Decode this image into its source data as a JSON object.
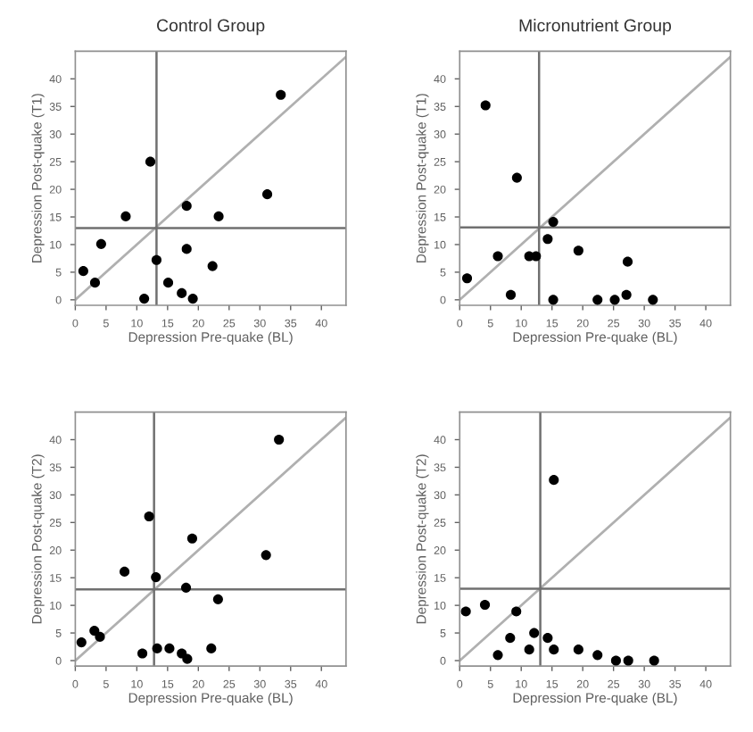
{
  "chart_data": [
    {
      "type": "scatter",
      "title": "Control Group",
      "xlabel": "Depression Pre-quake (BL)",
      "ylabel": "Depression Post-quake (T1)",
      "xlim": [
        0,
        44
      ],
      "ylim": [
        -1,
        45
      ],
      "xticks": [
        0,
        5,
        10,
        15,
        20,
        25,
        30,
        35,
        40
      ],
      "yticks": [
        0,
        5,
        10,
        15,
        20,
        25,
        30,
        35,
        40
      ],
      "grid": false,
      "series": [
        {
          "color": "#000000",
          "marker": "circle",
          "x": [
            1.3,
            3.2,
            4.2,
            8.2,
            12.2,
            11.2,
            13.2,
            15.1,
            17.3,
            18.1,
            18.1,
            19.1,
            22.3,
            23.3,
            31.2,
            33.4
          ],
          "values": [
            5.2,
            3.1,
            10.1,
            15.1,
            25,
            0.2,
            7.2,
            3.1,
            1.2,
            17,
            9.2,
            0.2,
            6.1,
            15.1,
            19.1,
            37.1
          ]
        },
        {
          "type": "line",
          "marker": "none",
          "color": "#b0b0b0",
          "x": [
            0,
            44
          ],
          "values": [
            0,
            44
          ]
        }
      ],
      "ref_lines": [
        {
          "axis": "x",
          "value": 13.2,
          "color": "#707070"
        },
        {
          "axis": "y",
          "value": 13,
          "color": "#707070"
        }
      ]
    },
    {
      "type": "scatter",
      "title": "Micronutrient Group",
      "xlabel": "Depression Pre-quake (BL)",
      "ylabel": "Depression Post-quake (T1)",
      "xlim": [
        0,
        44
      ],
      "ylim": [
        -1,
        45
      ],
      "xticks": [
        0,
        5,
        10,
        15,
        20,
        25,
        30,
        35,
        40
      ],
      "yticks": [
        0,
        5,
        10,
        15,
        20,
        25,
        30,
        35,
        40
      ],
      "grid": false,
      "series": [
        {
          "color": "#000000",
          "marker": "circle",
          "x": [
            1.2,
            4.2,
            6.2,
            8.3,
            9.3,
            11.3,
            12.4,
            14.3,
            15.2,
            15.2,
            19.3,
            22.4,
            25.2,
            27.1,
            27.3,
            31.4
          ],
          "values": [
            3.9,
            35.2,
            7.9,
            0.9,
            22.1,
            7.9,
            7.9,
            11,
            14.1,
            0,
            8.9,
            0,
            0,
            0.9,
            6.9,
            0
          ]
        },
        {
          "type": "line",
          "marker": "none",
          "color": "#b0b0b0",
          "x": [
            0,
            44
          ],
          "values": [
            0,
            44
          ]
        }
      ],
      "ref_lines": [
        {
          "axis": "x",
          "value": 12.9,
          "color": "#707070"
        },
        {
          "axis": "y",
          "value": 13.1,
          "color": "#707070"
        }
      ]
    },
    {
      "type": "scatter",
      "xlabel": "Depression Pre-quake (BL)",
      "ylabel": "Depression Post-quake (T2)",
      "xlim": [
        0,
        44
      ],
      "ylim": [
        -1,
        45
      ],
      "xticks": [
        0,
        5,
        10,
        15,
        20,
        25,
        30,
        35,
        40
      ],
      "yticks": [
        0,
        5,
        10,
        15,
        20,
        25,
        30,
        35,
        40
      ],
      "grid": false,
      "series": [
        {
          "color": "#000000",
          "marker": "circle",
          "x": [
            1,
            3.1,
            4,
            8,
            12,
            10.9,
            13.1,
            13.3,
            15.3,
            17.3,
            18,
            18.2,
            19,
            22.1,
            23.2,
            31,
            33.1
          ],
          "values": [
            3.3,
            5.4,
            4.3,
            16.1,
            26.1,
            1.3,
            15.1,
            2.2,
            2.2,
            1.3,
            13.2,
            0.3,
            22.1,
            2.2,
            11.1,
            19.1,
            40
          ]
        },
        {
          "type": "line",
          "marker": "none",
          "color": "#b0b0b0",
          "x": [
            0,
            44
          ],
          "values": [
            0,
            44
          ]
        }
      ],
      "ref_lines": [
        {
          "axis": "x",
          "value": 12.8,
          "color": "#707070"
        },
        {
          "axis": "y",
          "value": 12.9,
          "color": "#707070"
        }
      ]
    },
    {
      "type": "scatter",
      "xlabel": "Depression Pre-quake (BL)",
      "ylabel": "Depression Post-quake (T2)",
      "xlim": [
        0,
        44
      ],
      "ylim": [
        -1,
        45
      ],
      "xticks": [
        0,
        5,
        10,
        15,
        20,
        25,
        30,
        35,
        40
      ],
      "yticks": [
        0,
        5,
        10,
        15,
        20,
        25,
        30,
        35,
        40
      ],
      "grid": false,
      "series": [
        {
          "color": "#000000",
          "marker": "circle",
          "x": [
            1,
            4.1,
            6.2,
            8.2,
            9.2,
            11.3,
            12.1,
            14.3,
            15.3,
            15.3,
            19.3,
            22.4,
            25.4,
            27.4,
            31.6
          ],
          "values": [
            8.9,
            10.1,
            1,
            4.1,
            8.9,
            2,
            5,
            4.1,
            2,
            32.7,
            2,
            1,
            0,
            0,
            0
          ]
        },
        {
          "type": "line",
          "marker": "none",
          "color": "#b0b0b0",
          "x": [
            0,
            44
          ],
          "values": [
            0,
            44
          ]
        }
      ],
      "ref_lines": [
        {
          "axis": "x",
          "value": 13.1,
          "color": "#707070"
        },
        {
          "axis": "y",
          "value": 13.0,
          "color": "#707070"
        }
      ]
    }
  ]
}
